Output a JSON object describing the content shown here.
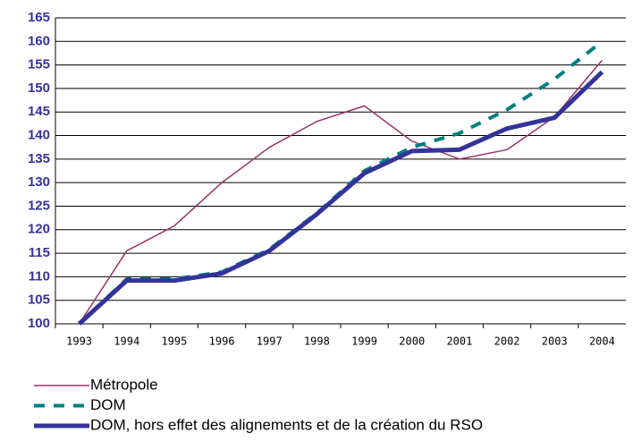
{
  "chart_data": {
    "type": "line",
    "categories": [
      "1993",
      "1994",
      "1995",
      "1996",
      "1997",
      "1998",
      "1999",
      "2000",
      "2001",
      "2002",
      "2003",
      "2004"
    ],
    "series": [
      {
        "name": "Métropole",
        "color": "#993366",
        "values": [
          100,
          115.5,
          120.8,
          130,
          137.5,
          143,
          146.3,
          138.8,
          135,
          137,
          144,
          156
        ]
      },
      {
        "name": "DOM",
        "color": "#008080",
        "values": [
          100,
          109.5,
          109.5,
          111,
          115.8,
          123.5,
          132.5,
          137.5,
          140.5,
          145.5,
          152,
          160
        ]
      },
      {
        "name": "DOM, hors effet des alignements et de la création du RSO",
        "color": "#333399",
        "values": [
          100,
          109.2,
          109.2,
          110.7,
          115.5,
          123.3,
          132,
          136.7,
          137,
          141.5,
          143.8,
          153.5
        ]
      }
    ],
    "ylim": [
      100,
      165
    ],
    "yticks": [
      100,
      105,
      110,
      115,
      120,
      125,
      130,
      135,
      140,
      145,
      150,
      155,
      160,
      165
    ],
    "grid": true,
    "legend": "bottom"
  }
}
